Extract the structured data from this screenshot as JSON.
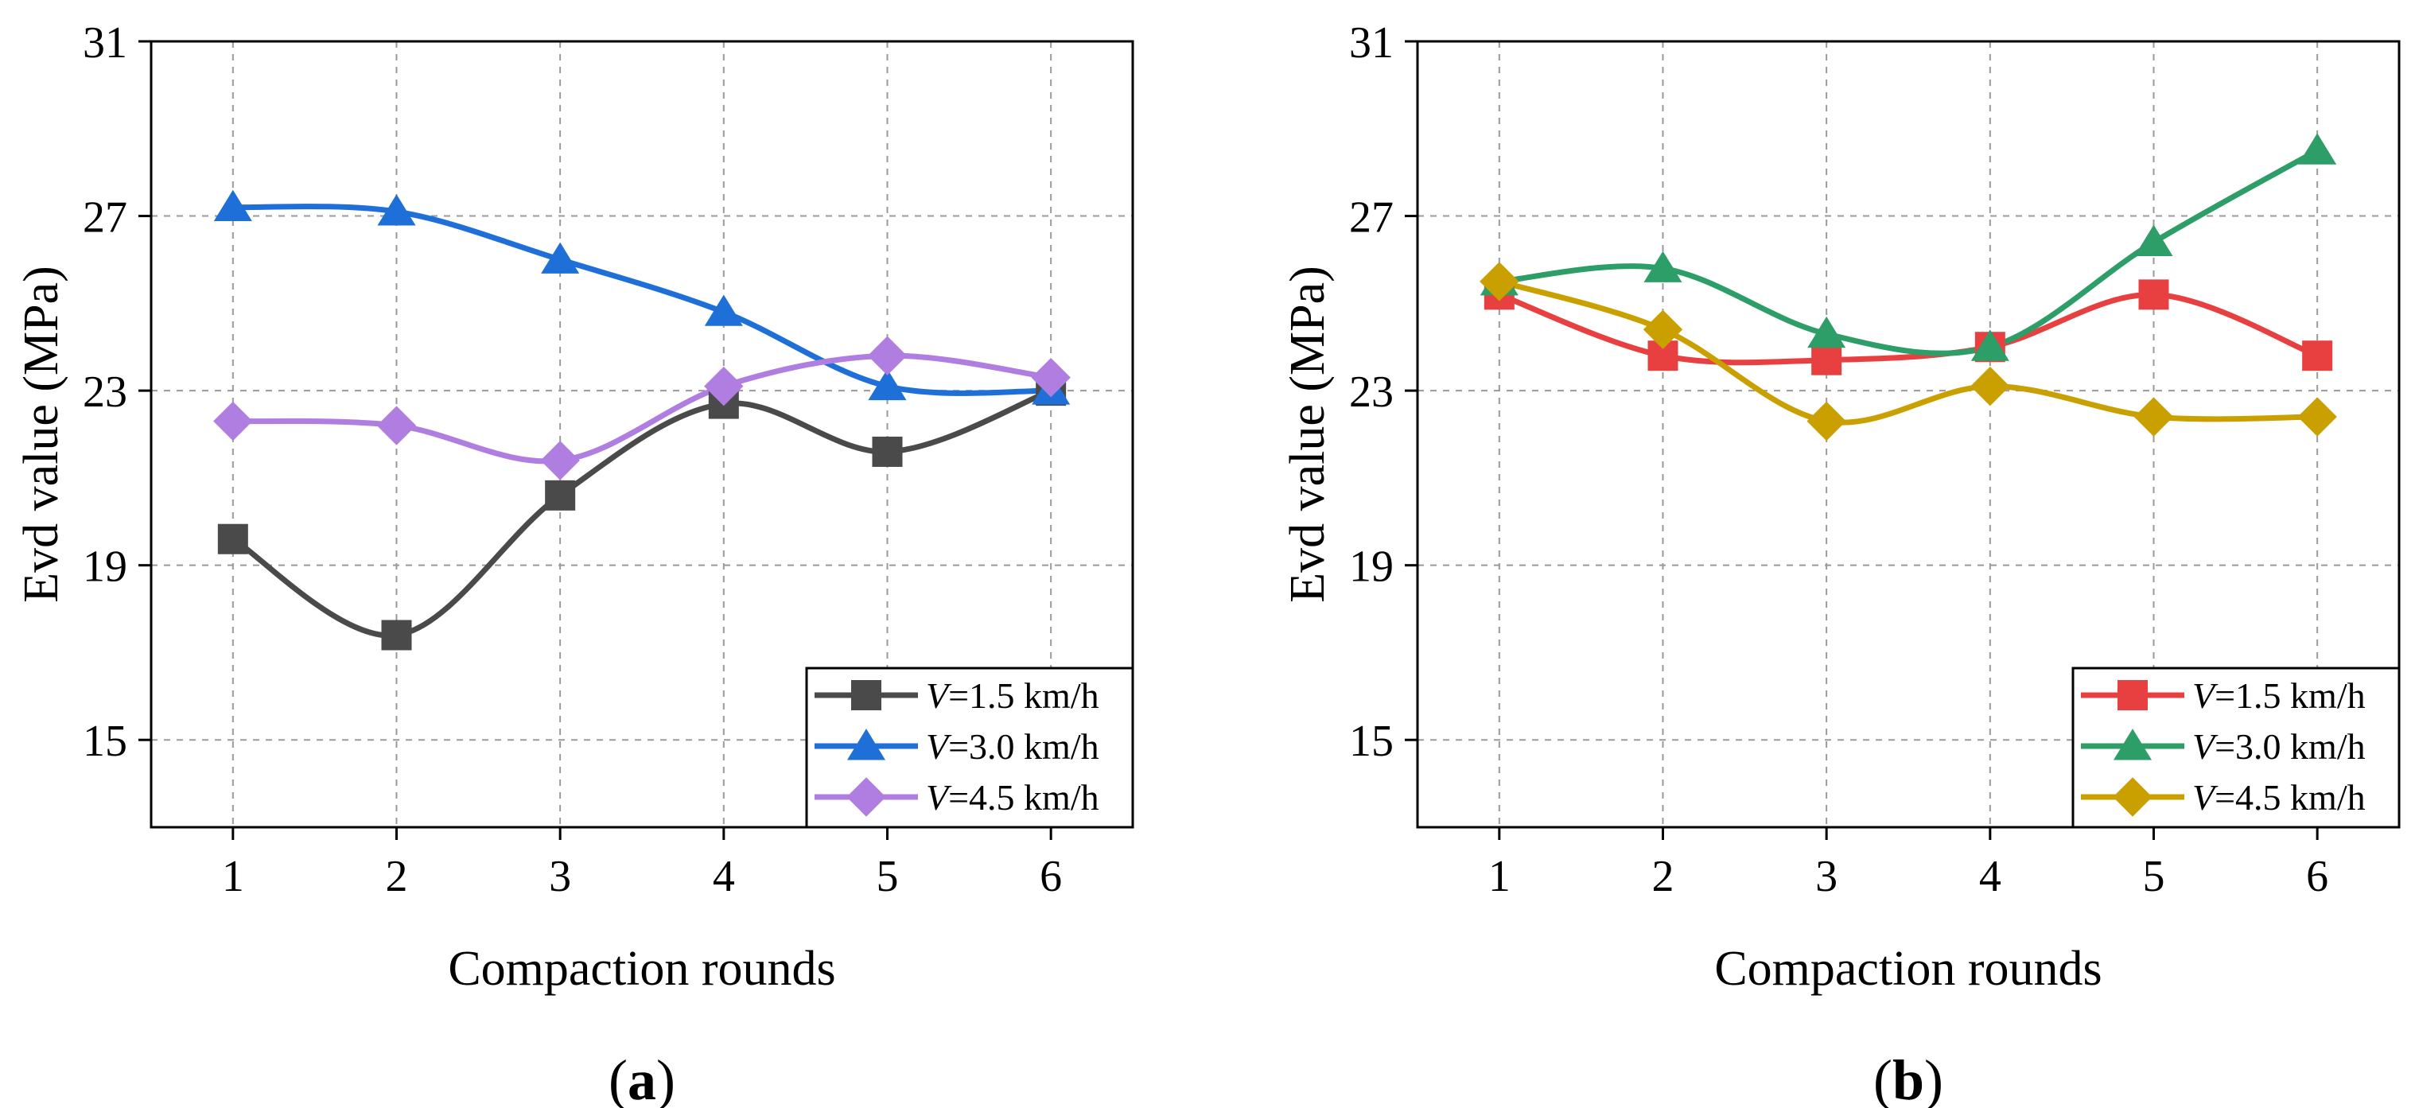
{
  "chart_data": [
    {
      "type": "line",
      "panel_label": "a",
      "xlabel": "Compaction rounds",
      "ylabel": "Evd value (MPa)",
      "x": [
        1,
        2,
        3,
        4,
        5,
        6
      ],
      "xlim": [
        0.5,
        6.5
      ],
      "ylim": [
        13,
        31
      ],
      "yticks": [
        15,
        19,
        23,
        27,
        31
      ],
      "grid": true,
      "legend_position": "bottom-right",
      "series": [
        {
          "name": "V=1.5 km/h",
          "legend_italic": "V",
          "legend_rest": "=1.5 km/h",
          "marker": "square",
          "color": "#4a4a4a",
          "values": [
            19.6,
            17.4,
            20.6,
            22.7,
            21.6,
            23.0
          ]
        },
        {
          "name": "V=3.0 km/h",
          "legend_italic": "V",
          "legend_rest": "=3.0 km/h",
          "marker": "triangle",
          "color": "#1f6fd8",
          "values": [
            27.2,
            27.1,
            26.0,
            24.8,
            23.1,
            23.0
          ]
        },
        {
          "name": "V=4.5 km/h",
          "legend_italic": "V",
          "legend_rest": "=4.5 km/h",
          "marker": "diamond",
          "color": "#b07de0",
          "values": [
            22.3,
            22.2,
            21.4,
            23.1,
            23.8,
            23.3
          ]
        }
      ]
    },
    {
      "type": "line",
      "panel_label": "b",
      "xlabel": "Compaction rounds",
      "ylabel": "Evd value (MPa)",
      "x": [
        1,
        2,
        3,
        4,
        5,
        6
      ],
      "xlim": [
        0.5,
        6.5
      ],
      "ylim": [
        13,
        31
      ],
      "yticks": [
        15,
        19,
        23,
        27,
        31
      ],
      "grid": true,
      "legend_position": "bottom-right",
      "series": [
        {
          "name": "V=1.5 km/h",
          "legend_italic": "V",
          "legend_rest": "=1.5 km/h",
          "marker": "square",
          "color": "#e84040",
          "values": [
            25.2,
            23.8,
            23.7,
            24.0,
            25.2,
            23.8
          ]
        },
        {
          "name": "V=3.0 km/h",
          "legend_italic": "V",
          "legend_rest": "=3.0 km/h",
          "marker": "triangle",
          "color": "#2e9e68",
          "values": [
            25.5,
            25.8,
            24.3,
            24.0,
            26.4,
            28.5
          ]
        },
        {
          "name": "V=4.5 km/h",
          "legend_italic": "V",
          "legend_rest": "=4.5 km/h",
          "marker": "diamond",
          "color": "#c9a000",
          "values": [
            25.5,
            24.4,
            22.3,
            23.1,
            22.4,
            22.4
          ]
        }
      ]
    }
  ]
}
